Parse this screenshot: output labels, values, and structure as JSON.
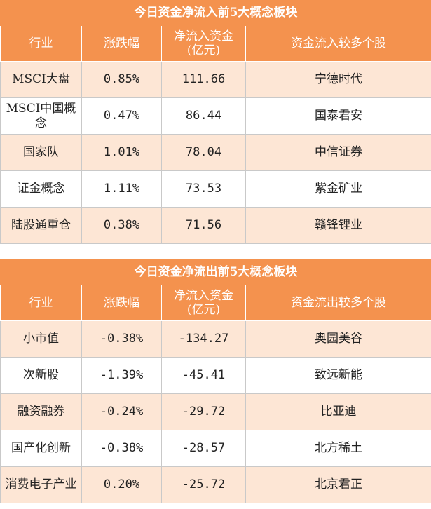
{
  "inflow": {
    "title": "今日资金净流入前5大概念板块",
    "headers": [
      "行业",
      "涨跌幅",
      "净流入资金\n(亿元)",
      "资金流入较多个股"
    ],
    "rows": [
      {
        "sector": "MSCI大盘",
        "change": "0.85%",
        "net": "111.66",
        "stock": "宁德时代"
      },
      {
        "sector": "MSCI中国概念",
        "change": "0.47%",
        "net": "86.44",
        "stock": "国泰君安"
      },
      {
        "sector": "国家队",
        "change": "1.01%",
        "net": "78.04",
        "stock": "中信证券"
      },
      {
        "sector": "证金概念",
        "change": "1.11%",
        "net": "73.53",
        "stock": "紫金矿业"
      },
      {
        "sector": "陆股通重仓",
        "change": "0.38%",
        "net": "71.56",
        "stock": "赣锋锂业"
      }
    ]
  },
  "outflow": {
    "title": "今日资金净流出前5大概念板块",
    "headers": [
      "行业",
      "涨跌幅",
      "净流入资金\n(亿元)",
      "资金流出较多个股"
    ],
    "rows": [
      {
        "sector": "小市值",
        "change": "-0.38%",
        "net": "-134.27",
        "stock": "奥园美谷"
      },
      {
        "sector": "次新股",
        "change": "-1.39%",
        "net": "-45.41",
        "stock": "致远新能"
      },
      {
        "sector": "融资融券",
        "change": "-0.24%",
        "net": "-29.72",
        "stock": "比亚迪"
      },
      {
        "sector": "国产化创新",
        "change": "-0.38%",
        "net": "-28.57",
        "stock": "北方稀土"
      },
      {
        "sector": "消费电子产业",
        "change": "0.20%",
        "net": "-25.72",
        "stock": "北京君正"
      }
    ]
  }
}
